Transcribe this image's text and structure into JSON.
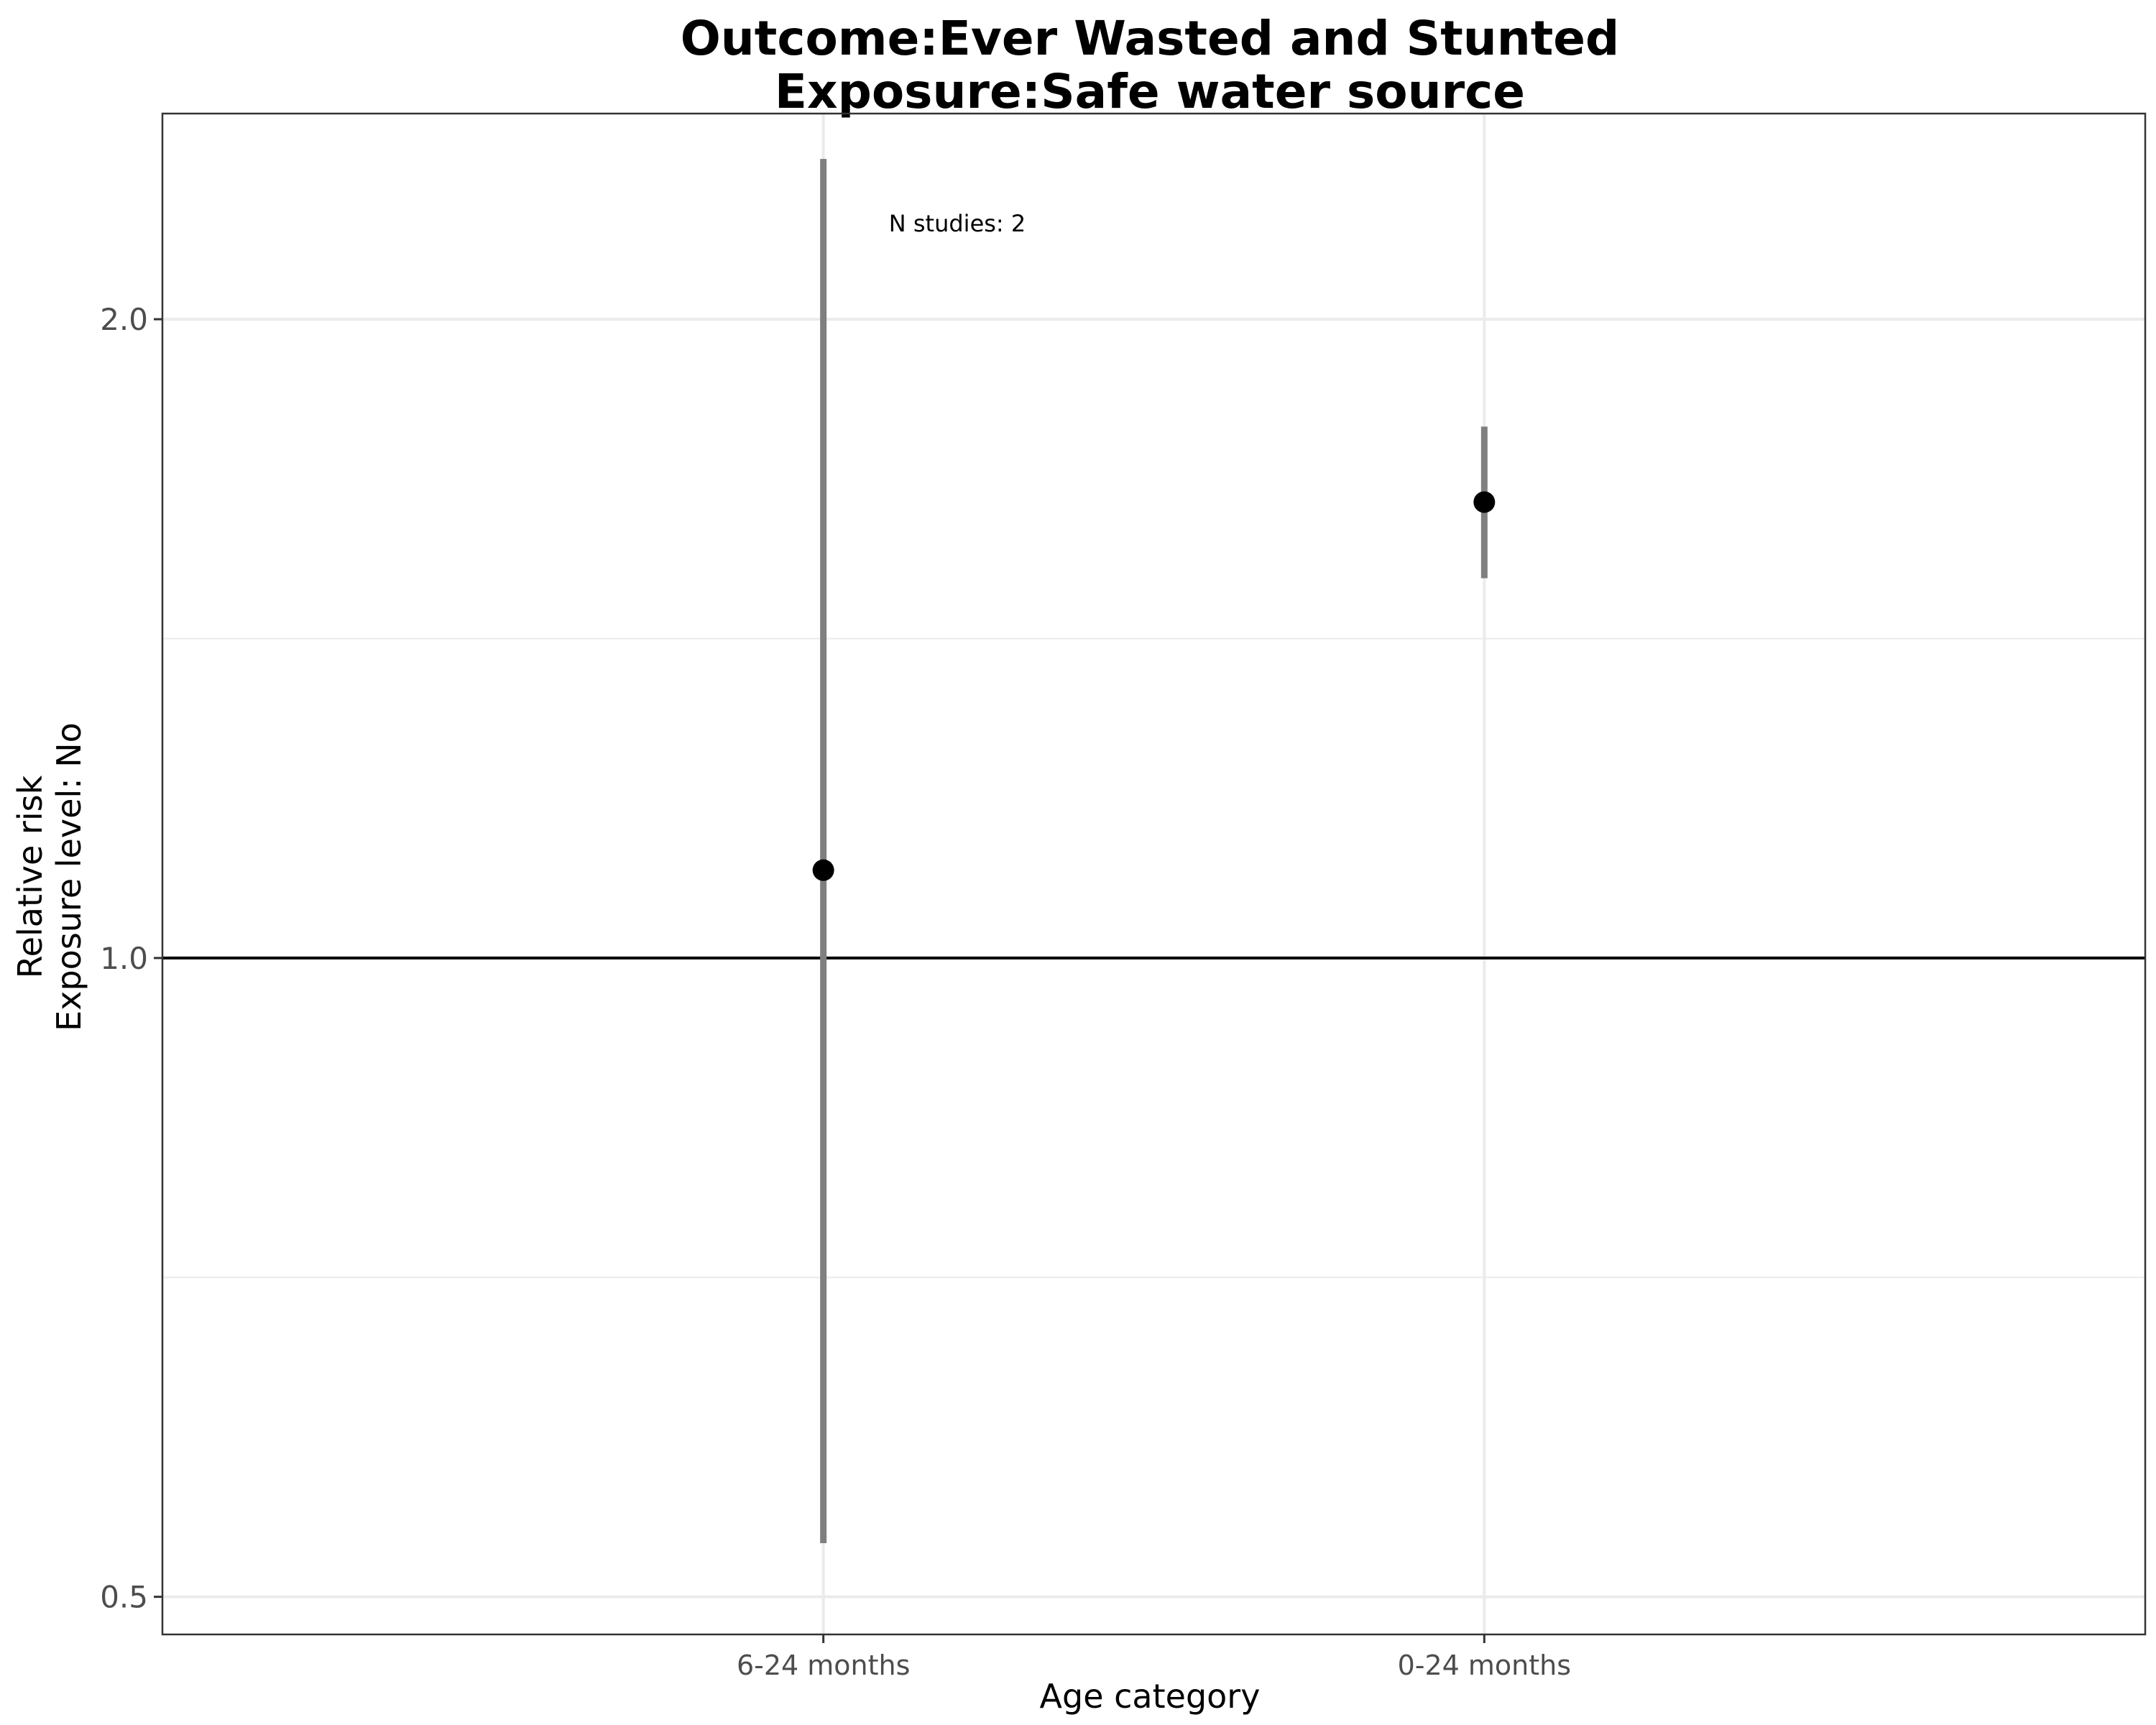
{
  "chart_data": {
    "type": "scatter",
    "title_lines": [
      "Outcome:Ever Wasted and Stunted",
      "Exposure:Safe water source"
    ],
    "xlabel": "Age category",
    "ylabel_lines": [
      "Relative risk",
      "Exposure level: No"
    ],
    "y_scale": "log",
    "ylim": [
      0.48,
      2.5
    ],
    "y_ticks": [
      0.5,
      1.0,
      2.0
    ],
    "y_tick_labels": [
      "0.5",
      "1.0",
      "2.0"
    ],
    "y_minor_gridlines": [
      0.7071,
      1.4142
    ],
    "reference_line": 1.0,
    "categories": [
      "6-24 months",
      "0-24 months"
    ],
    "points": [
      {
        "category": "6-24 months",
        "estimate": 1.1,
        "ci_lower": 0.53,
        "ci_upper": 2.38
      },
      {
        "category": "0-24 months",
        "estimate": 1.64,
        "ci_lower": 1.51,
        "ci_upper": 1.78
      }
    ],
    "annotations": [
      "N studies: 2"
    ],
    "grid": true,
    "legend": "none",
    "colors": {
      "point": "#000000",
      "ci_bar": "#7f7f7f",
      "reference_line": "#000000",
      "grid": "#ebebeb",
      "panel_border": "#333333"
    }
  }
}
